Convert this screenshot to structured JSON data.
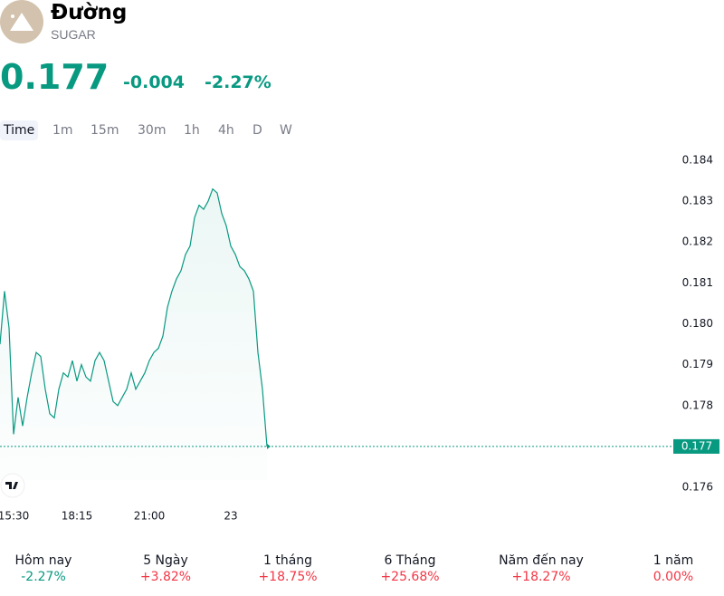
{
  "header": {
    "title": "Đường",
    "symbol": "SUGAR",
    "price": "0.177",
    "change": "-0.004",
    "change_percent": "-2.27%"
  },
  "tabs": [
    "Time",
    "1m",
    "15m",
    "30m",
    "1h",
    "4h",
    "D",
    "W"
  ],
  "performance": [
    {
      "label": "Hôm nay",
      "value": "-2.27%",
      "color": "#089981"
    },
    {
      "label": "5 Ngày",
      "value": "+3.82%",
      "color": "#f23645"
    },
    {
      "label": "1 tháng",
      "value": "+18.75%",
      "color": "#f23645"
    },
    {
      "label": "6 Tháng",
      "value": "+25.68%",
      "color": "#f23645"
    },
    {
      "label": "Năm đến nay",
      "value": "+18.27%",
      "color": "#f23645"
    },
    {
      "label": "1 năm",
      "value": "0.00%",
      "color": "#f23645"
    }
  ],
  "chart_data": {
    "type": "line",
    "categories": [
      null,
      null,
      null,
      "15:30",
      null,
      null,
      null,
      null,
      null,
      null,
      null,
      null,
      null,
      null,
      null,
      null,
      null,
      "18:15",
      null,
      null,
      null,
      null,
      null,
      null,
      null,
      null,
      null,
      null,
      null,
      null,
      null,
      null,
      null,
      "21:00",
      null,
      null,
      null,
      null,
      null,
      null,
      null,
      null,
      null,
      null,
      null,
      null,
      null,
      null,
      null,
      null,
      null,
      "23",
      null,
      null,
      null,
      null,
      null,
      null,
      null,
      null
    ],
    "series": [
      {
        "name": "SUGAR",
        "color": "#089981",
        "values": [
          0.1795,
          0.1808,
          0.1799,
          0.1773,
          0.1782,
          0.1775,
          0.1782,
          0.1788,
          0.1793,
          0.1792,
          0.1784,
          0.1778,
          0.1777,
          0.1784,
          0.1788,
          0.1787,
          0.1791,
          0.1786,
          0.179,
          0.1787,
          0.1786,
          0.1791,
          0.1793,
          0.1791,
          0.1786,
          0.1781,
          0.178,
          0.1782,
          0.1784,
          0.1788,
          0.1784,
          0.1786,
          0.1788,
          0.1791,
          0.1793,
          0.1794,
          0.1797,
          0.1804,
          0.1808,
          0.1811,
          0.1813,
          0.1817,
          0.1819,
          0.1826,
          0.1829,
          0.1828,
          0.183,
          0.1833,
          0.1832,
          0.1827,
          0.1824,
          0.1819,
          0.1817,
          0.1814,
          0.1813,
          0.1811,
          0.1808,
          0.1793,
          0.1784,
          0.177
        ]
      }
    ],
    "ylim": [
      0.1755,
      0.1845
    ],
    "yticks": [
      0.176,
      0.177,
      0.178,
      0.179,
      {
        "value": 0.18,
        "label": "0.180"
      },
      0.181,
      0.182,
      0.183,
      0.184
    ]
  }
}
